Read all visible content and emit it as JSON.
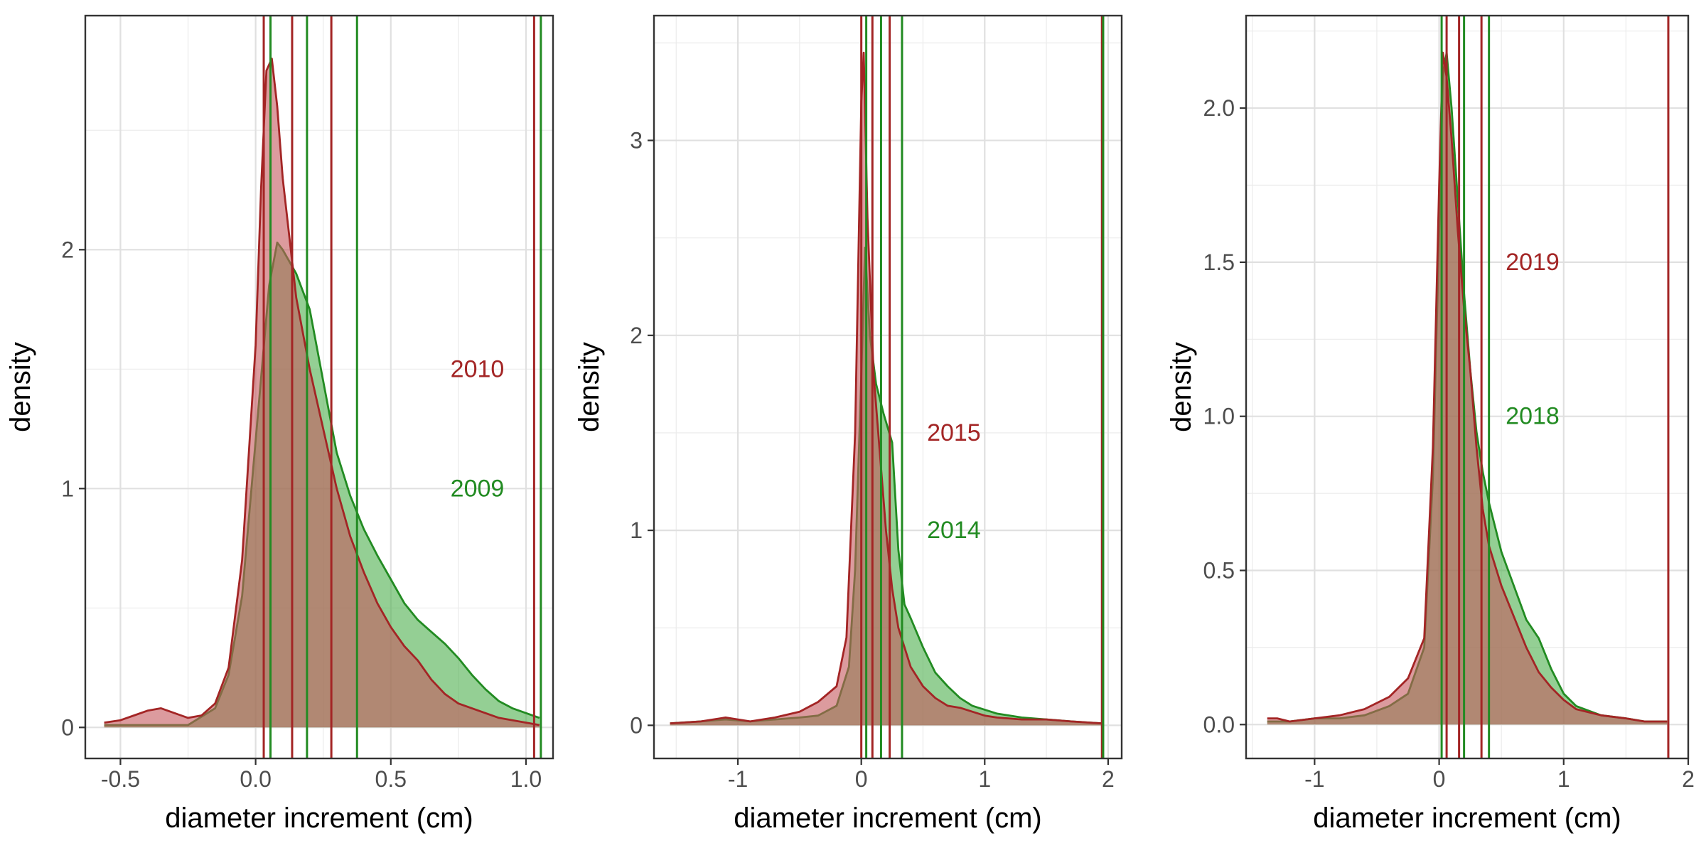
{
  "chart_data": [
    {
      "type": "area",
      "xlabel": "diameter increment (cm)",
      "ylabel": "density",
      "xlim": [
        -0.63,
        1.1
      ],
      "ylim": [
        -0.13,
        2.98
      ],
      "xticks": [
        -0.5,
        0.0,
        0.5,
        1.0
      ],
      "xtick_labels": [
        "-0.5",
        "0.0",
        "0.5",
        "1.0"
      ],
      "yticks": [
        0,
        1,
        2
      ],
      "ytick_labels": [
        "0",
        "1",
        "2"
      ],
      "grid": true,
      "annotations": [
        {
          "text": "2010",
          "x": 0.82,
          "y": 1.5,
          "color": "#a32525"
        },
        {
          "text": "2009",
          "x": 0.82,
          "y": 1.0,
          "color": "#228b22"
        }
      ],
      "series": [
        {
          "name": "2009",
          "color": "#228b22",
          "fill": "#4caf4c",
          "x": [
            -0.56,
            -0.45,
            -0.35,
            -0.25,
            -0.15,
            -0.1,
            -0.05,
            0.0,
            0.05,
            0.08,
            0.1,
            0.15,
            0.2,
            0.25,
            0.3,
            0.35,
            0.4,
            0.45,
            0.5,
            0.55,
            0.6,
            0.65,
            0.7,
            0.75,
            0.8,
            0.85,
            0.9,
            0.95,
            1.0,
            1.05
          ],
          "y": [
            0.01,
            0.01,
            0.01,
            0.01,
            0.08,
            0.22,
            0.55,
            1.2,
            1.85,
            2.03,
            2.0,
            1.9,
            1.75,
            1.45,
            1.15,
            0.97,
            0.83,
            0.72,
            0.62,
            0.52,
            0.45,
            0.4,
            0.35,
            0.29,
            0.22,
            0.16,
            0.11,
            0.08,
            0.06,
            0.04
          ]
        },
        {
          "name": "2010",
          "color": "#a32525",
          "fill": "#c4595e",
          "x": [
            -0.56,
            -0.5,
            -0.45,
            -0.4,
            -0.35,
            -0.3,
            -0.25,
            -0.2,
            -0.15,
            -0.1,
            -0.05,
            0.0,
            0.02,
            0.04,
            0.06,
            0.08,
            0.1,
            0.15,
            0.2,
            0.25,
            0.3,
            0.35,
            0.4,
            0.45,
            0.5,
            0.55,
            0.6,
            0.65,
            0.7,
            0.75,
            0.8,
            0.85,
            0.9,
            0.95,
            1.0,
            1.05
          ],
          "y": [
            0.02,
            0.03,
            0.05,
            0.07,
            0.08,
            0.06,
            0.04,
            0.05,
            0.1,
            0.25,
            0.7,
            1.6,
            2.25,
            2.75,
            2.8,
            2.6,
            2.3,
            1.8,
            1.5,
            1.25,
            1.0,
            0.8,
            0.65,
            0.52,
            0.42,
            0.34,
            0.28,
            0.2,
            0.14,
            0.1,
            0.08,
            0.06,
            0.04,
            0.03,
            0.02,
            0.01
          ]
        }
      ],
      "vlines": [
        {
          "x": 0.03,
          "color": "#a32525"
        },
        {
          "x": 0.055,
          "color": "#228b22"
        },
        {
          "x": 0.135,
          "color": "#a32525"
        },
        {
          "x": 0.19,
          "color": "#228b22"
        },
        {
          "x": 0.28,
          "color": "#a32525"
        },
        {
          "x": 0.375,
          "color": "#228b22"
        },
        {
          "x": 1.03,
          "color": "#a32525"
        },
        {
          "x": 1.055,
          "color": "#228b22"
        }
      ]
    },
    {
      "type": "area",
      "xlabel": "diameter increment (cm)",
      "ylabel": "density",
      "xlim": [
        -1.68,
        2.11
      ],
      "ylim": [
        -0.17,
        3.64
      ],
      "xticks": [
        -1,
        0,
        1,
        2
      ],
      "xtick_labels": [
        "-1",
        "0",
        "1",
        "2"
      ],
      "yticks": [
        0,
        1,
        2,
        3
      ],
      "ytick_labels": [
        "0",
        "1",
        "2",
        "3"
      ],
      "grid": true,
      "annotations": [
        {
          "text": "2015",
          "x": 0.75,
          "y": 1.5,
          "color": "#a32525"
        },
        {
          "text": "2014",
          "x": 0.75,
          "y": 1.0,
          "color": "#228b22"
        }
      ],
      "series": [
        {
          "name": "2014",
          "color": "#228b22",
          "fill": "#4caf4c",
          "x": [
            -1.55,
            -1.3,
            -1.1,
            -0.9,
            -0.7,
            -0.5,
            -0.35,
            -0.2,
            -0.1,
            -0.05,
            0.0,
            0.03,
            0.07,
            0.12,
            0.18,
            0.25,
            0.3,
            0.35,
            0.4,
            0.5,
            0.6,
            0.7,
            0.8,
            0.9,
            1.0,
            1.1,
            1.3,
            1.5,
            1.7,
            1.95
          ],
          "y": [
            0.01,
            0.02,
            0.03,
            0.02,
            0.03,
            0.04,
            0.05,
            0.1,
            0.3,
            0.8,
            1.8,
            2.45,
            2.0,
            1.75,
            1.6,
            1.45,
            0.9,
            0.62,
            0.55,
            0.4,
            0.27,
            0.2,
            0.14,
            0.1,
            0.08,
            0.06,
            0.04,
            0.03,
            0.02,
            0.01
          ]
        },
        {
          "name": "2015",
          "color": "#a32525",
          "fill": "#c4595e",
          "x": [
            -1.55,
            -1.3,
            -1.1,
            -0.9,
            -0.7,
            -0.5,
            -0.35,
            -0.2,
            -0.12,
            -0.05,
            0.0,
            0.02,
            0.05,
            0.1,
            0.15,
            0.2,
            0.25,
            0.3,
            0.4,
            0.5,
            0.6,
            0.7,
            0.8,
            0.9,
            1.0,
            1.1,
            1.3,
            1.5,
            1.7,
            1.95
          ],
          "y": [
            0.01,
            0.02,
            0.04,
            0.02,
            0.04,
            0.07,
            0.12,
            0.2,
            0.45,
            1.5,
            3.2,
            3.45,
            2.6,
            1.8,
            1.4,
            1.0,
            0.7,
            0.5,
            0.3,
            0.2,
            0.14,
            0.1,
            0.09,
            0.07,
            0.05,
            0.04,
            0.03,
            0.03,
            0.02,
            0.01
          ]
        }
      ],
      "vlines": [
        {
          "x": 0.0,
          "color": "#a32525"
        },
        {
          "x": 0.04,
          "color": "#228b22"
        },
        {
          "x": 0.09,
          "color": "#a32525"
        },
        {
          "x": 0.16,
          "color": "#228b22"
        },
        {
          "x": 0.23,
          "color": "#a32525"
        },
        {
          "x": 0.33,
          "color": "#228b22"
        },
        {
          "x": 1.95,
          "color": "#a32525"
        },
        {
          "x": 1.96,
          "color": "#228b22"
        }
      ]
    },
    {
      "type": "area",
      "xlabel": "diameter increment (cm)",
      "ylabel": "density",
      "xlim": [
        -1.55,
        2.0
      ],
      "ylim": [
        -0.11,
        2.3
      ],
      "xticks": [
        -1,
        0,
        1,
        2
      ],
      "xtick_labels": [
        "-1",
        "0",
        "1",
        "2"
      ],
      "yticks": [
        0.0,
        0.5,
        1.0,
        1.5,
        2.0
      ],
      "ytick_labels": [
        "0.0",
        "0.5",
        "1.0",
        "1.5",
        "2.0"
      ],
      "grid": true,
      "annotations": [
        {
          "text": "2019",
          "x": 0.75,
          "y": 1.5,
          "color": "#a32525"
        },
        {
          "text": "2018",
          "x": 0.75,
          "y": 1.0,
          "color": "#228b22"
        }
      ],
      "series": [
        {
          "name": "2018",
          "color": "#228b22",
          "fill": "#4caf4c",
          "x": [
            -1.38,
            -1.2,
            -1.0,
            -0.8,
            -0.6,
            -0.4,
            -0.25,
            -0.12,
            -0.05,
            0.0,
            0.03,
            0.06,
            0.1,
            0.15,
            0.2,
            0.25,
            0.3,
            0.35,
            0.4,
            0.5,
            0.6,
            0.7,
            0.8,
            0.9,
            1.0,
            1.1,
            1.3,
            1.5,
            1.65,
            1.83
          ],
          "y": [
            0.01,
            0.01,
            0.02,
            0.02,
            0.03,
            0.06,
            0.1,
            0.25,
            0.8,
            1.6,
            2.1,
            2.18,
            2.0,
            1.7,
            1.4,
            1.15,
            0.95,
            0.82,
            0.72,
            0.56,
            0.45,
            0.34,
            0.28,
            0.18,
            0.1,
            0.06,
            0.03,
            0.02,
            0.01,
            0.01
          ]
        },
        {
          "name": "2019",
          "color": "#a32525",
          "fill": "#c4595e",
          "x": [
            -1.38,
            -1.3,
            -1.2,
            -1.0,
            -0.8,
            -0.6,
            -0.4,
            -0.25,
            -0.12,
            -0.05,
            0.0,
            0.03,
            0.06,
            0.1,
            0.15,
            0.2,
            0.25,
            0.3,
            0.35,
            0.4,
            0.5,
            0.6,
            0.7,
            0.8,
            0.9,
            1.0,
            1.1,
            1.3,
            1.5,
            1.65,
            1.83
          ],
          "y": [
            0.02,
            0.02,
            0.01,
            0.02,
            0.03,
            0.05,
            0.09,
            0.15,
            0.28,
            0.9,
            1.75,
            2.18,
            2.1,
            1.9,
            1.6,
            1.35,
            1.15,
            0.9,
            0.7,
            0.58,
            0.45,
            0.35,
            0.25,
            0.17,
            0.12,
            0.08,
            0.05,
            0.03,
            0.02,
            0.01,
            0.01
          ]
        }
      ],
      "vlines": [
        {
          "x": 0.02,
          "color": "#228b22"
        },
        {
          "x": 0.06,
          "color": "#a32525"
        },
        {
          "x": 0.16,
          "color": "#a32525"
        },
        {
          "x": 0.2,
          "color": "#228b22"
        },
        {
          "x": 0.34,
          "color": "#a32525"
        },
        {
          "x": 0.4,
          "color": "#228b22"
        },
        {
          "x": 1.84,
          "color": "#a32525"
        }
      ]
    }
  ]
}
